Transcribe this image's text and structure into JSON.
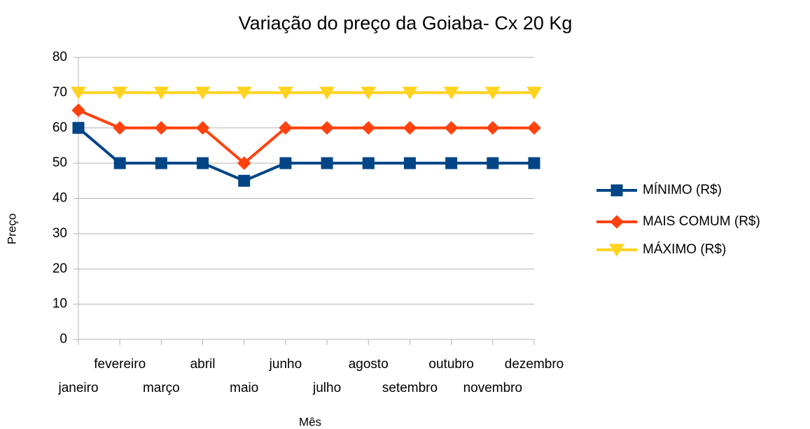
{
  "chart_data": {
    "type": "line",
    "title": "Variação do preço da Goiaba- Cx  20 Kg",
    "x_label": "Mês",
    "y_label": "Preço",
    "categories": [
      "janeiro",
      "fevereiro",
      "março",
      "abril",
      "maio",
      "junho",
      "julho",
      "agosto",
      "setembro",
      "outubro",
      "novembro",
      "dezembro"
    ],
    "series": [
      {
        "name": "MÍNIMO (R$)",
        "color": "#004586",
        "marker": "square",
        "values": [
          60,
          50,
          50,
          50,
          45,
          50,
          50,
          50,
          50,
          50,
          50,
          50
        ]
      },
      {
        "name": "MAIS COMUM (R$)",
        "color": "#ff420e",
        "marker": "diamond",
        "values": [
          65,
          60,
          60,
          60,
          50,
          60,
          60,
          60,
          60,
          60,
          60,
          60
        ]
      },
      {
        "name": "MÁXIMO (R$)",
        "color": "#ffd320",
        "marker": "triangle-down",
        "values": [
          70,
          70,
          70,
          70,
          70,
          70,
          70,
          70,
          70,
          70,
          70,
          70
        ]
      }
    ],
    "ylim": [
      0,
      80
    ],
    "yticks": [
      0,
      10,
      20,
      30,
      40,
      50,
      60,
      70,
      80
    ],
    "grid": true,
    "legend": "right"
  }
}
